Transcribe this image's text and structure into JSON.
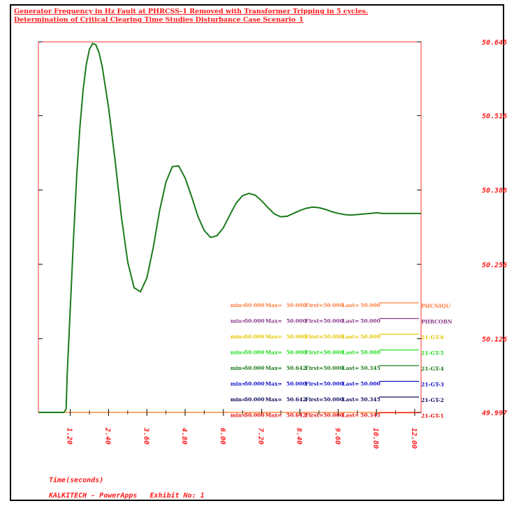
{
  "chart_data": {
    "type": "line",
    "title": "Generator Frequency in Hz Fault at PHRCSS-1 Removed with Transformer Tripping in 5 cycles.",
    "subtitle": "Determination of Critical Clearing Time Studies Disturbance Case Scenario_1",
    "xlabel": "Time(seconds)",
    "ylabel": "",
    "xlim": [
      0.2,
      12.2
    ],
    "ylim": [
      49.997,
      50.645
    ],
    "x_ticks": [
      "1.20",
      "2.40",
      "3.60",
      "4.80",
      "6.00",
      "7.20",
      "8.40",
      "9.60",
      "10.80",
      "12.00"
    ],
    "y_ticks": [
      "49.997",
      "50.126",
      "50.256",
      "50.386",
      "50.516",
      "50.645"
    ],
    "grid": false,
    "legend_position": "bottom-right",
    "legend": [
      {
        "name": "PHCNIQU",
        "min_label": "min=",
        "min": "50.000",
        "max_label": "Max=",
        "max": "50.000",
        "first_label": "First=",
        "first": "50.000",
        "last_label": "Last=",
        "last": "50.000",
        "color": "#ff8040"
      },
      {
        "name": "PHRCOBN",
        "min_label": "min=",
        "min": "50.000",
        "max_label": "Max=",
        "max": "50.000",
        "first_label": "First=",
        "first": "50.000",
        "last_label": "Last=",
        "last": "50.000",
        "color": "#8b3a8b"
      },
      {
        "name": "21-GT-6",
        "min_label": "min=",
        "min": "50.000",
        "max_label": "Max=",
        "max": "50.000",
        "first_label": "First=",
        "first": "50.000",
        "last_label": "Last=",
        "last": "50.000",
        "color": "#e6c800"
      },
      {
        "name": "21-GT-5",
        "min_label": "min=",
        "min": "50.000",
        "max_label": "Max=",
        "max": "50.000",
        "first_label": "First=",
        "first": "50.000",
        "last_label": "Last=",
        "last": "50.000",
        "color": "#22dd22"
      },
      {
        "name": "21-GT-4",
        "min_label": "min=",
        "min": "50.000",
        "max_label": "Max=",
        "max": "50.642",
        "first_label": "First=",
        "first": "50.000",
        "last_label": "Last=",
        "last": "50.345",
        "color": "#1a7a1a"
      },
      {
        "name": "21-GT-3",
        "min_label": "min=",
        "min": "50.000",
        "max_label": "Max=",
        "max": "50.000",
        "first_label": "First=",
        "first": "50.000",
        "last_label": "Last=",
        "last": "50.000",
        "color": "#1010cc"
      },
      {
        "name": "21-GT-2",
        "min_label": "min=",
        "min": "50.000",
        "max_label": "Max=",
        "max": "50.642",
        "first_label": "First=",
        "first": "50.000",
        "last_label": "Last=",
        "last": "50.345",
        "color": "#101060"
      },
      {
        "name": "21-GT-1",
        "min_label": "min=",
        "min": "50.000",
        "max_label": "Max=",
        "max": "50.642",
        "first_label": "First=",
        "first": "50.000",
        "last_label": "Last=",
        "last": "50.345",
        "color": "#ee1111"
      }
    ],
    "series": [
      {
        "color": "#1a7a1a",
        "x": [
          0.2,
          1.0,
          1.07,
          1.1,
          1.2,
          1.3,
          1.4,
          1.5,
          1.6,
          1.7,
          1.8,
          1.9,
          2.0,
          2.1,
          2.2,
          2.4,
          2.6,
          2.8,
          3.0,
          3.2,
          3.4,
          3.6,
          3.8,
          4.0,
          4.2,
          4.4,
          4.6,
          4.8,
          5.0,
          5.2,
          5.4,
          5.6,
          5.8,
          6.0,
          6.2,
          6.4,
          6.6,
          6.8,
          7.0,
          7.2,
          7.4,
          7.6,
          7.8,
          8.0,
          8.2,
          8.4,
          8.6,
          8.8,
          9.0,
          9.2,
          9.4,
          9.6,
          9.8,
          10.0,
          10.2,
          10.4,
          10.6,
          10.8,
          11.0,
          11.2,
          11.4,
          11.6,
          11.8,
          12.0,
          12.2
        ],
        "y": [
          49.997,
          49.997,
          50.003,
          50.06,
          50.18,
          50.3,
          50.41,
          50.495,
          50.56,
          50.605,
          50.632,
          50.642,
          50.64,
          50.626,
          50.602,
          50.53,
          50.44,
          50.34,
          50.26,
          50.215,
          50.208,
          50.232,
          50.285,
          50.35,
          50.4,
          50.427,
          50.428,
          50.407,
          50.375,
          50.34,
          50.315,
          50.303,
          50.306,
          50.32,
          50.342,
          50.363,
          50.376,
          50.38,
          50.377,
          50.367,
          50.355,
          50.344,
          50.339,
          50.34,
          50.345,
          50.35,
          50.354,
          50.356,
          50.355,
          50.352,
          50.348,
          50.345,
          50.343,
          50.342,
          50.343,
          50.344,
          50.345,
          50.346,
          50.345,
          50.345,
          50.345,
          50.345,
          50.345,
          50.345,
          50.345
        ]
      }
    ]
  },
  "footer": {
    "credit": "KALKITECH - PowerApps   Exhibit No: 1"
  }
}
